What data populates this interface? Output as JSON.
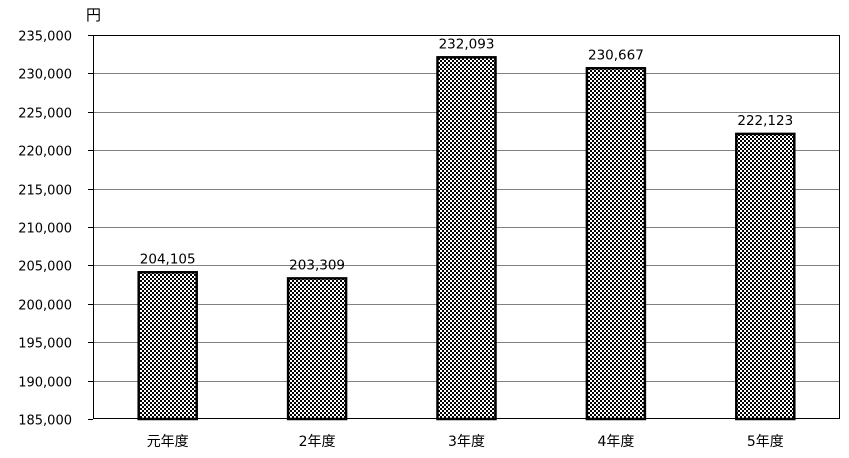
{
  "chart_data": {
    "type": "bar",
    "unit": "円",
    "categories": [
      "元年度",
      "2年度",
      "3年度",
      "4年度",
      "5年度"
    ],
    "series": [
      {
        "values": [
          204105,
          203309,
          232093,
          230667,
          222123
        ],
        "data_labels": [
          "204,105",
          "203,309",
          "232,093",
          "230,667",
          "222,123"
        ]
      }
    ],
    "ylim": [
      185000,
      235000
    ],
    "ytick_step": 5000,
    "ytick_labels": [
      "185,000",
      "190,000",
      "195,000",
      "200,000",
      "205,000",
      "210,000",
      "215,000",
      "220,000",
      "225,000",
      "230,000",
      "235,000"
    ],
    "grid": true,
    "legend": "none",
    "colors": {
      "bar_fill": "#7a7a7a",
      "bar_pattern_dark": "#000000",
      "bar_pattern_light": "#ffffff",
      "grid": "#808080",
      "axis": "#000000"
    }
  }
}
